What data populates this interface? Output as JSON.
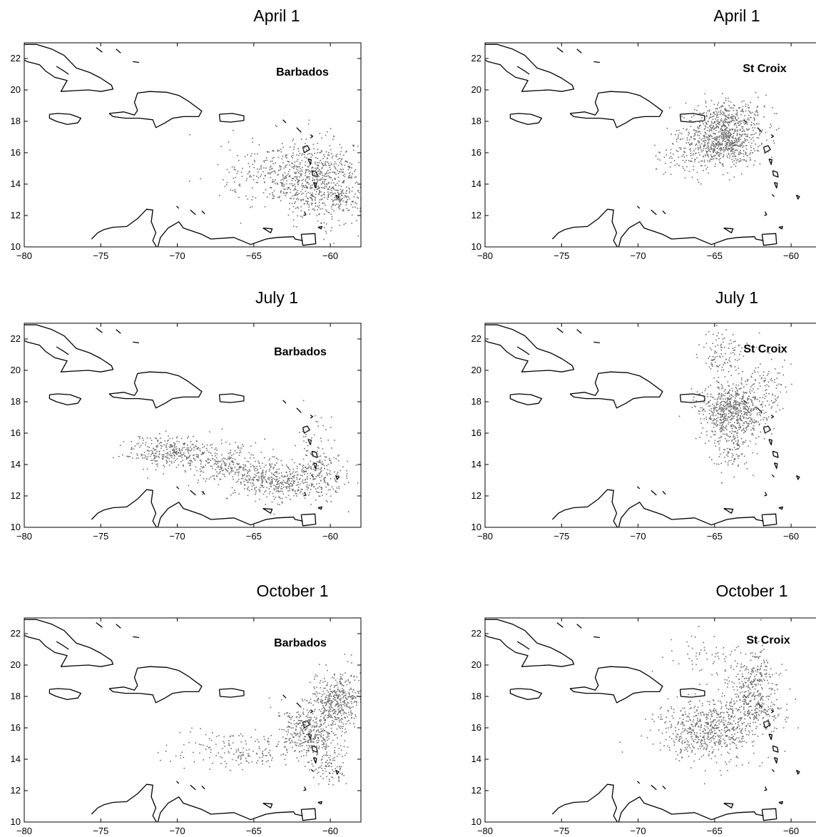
{
  "colors": {
    "points": "#6f6f6f",
    "coastline": "#000000"
  },
  "chart_data": [
    {
      "type": "scatter",
      "title": "April 1",
      "label": "Barbados",
      "xlim": [
        -80,
        -58
      ],
      "ylim": [
        10,
        23
      ],
      "xticks": [
        -80,
        -75,
        -70,
        -65,
        -60
      ],
      "yticks": [
        10,
        12,
        14,
        16,
        18,
        20,
        22
      ],
      "xtick_labels": [
        "−80",
        "−75",
        "−70",
        "−65",
        "−60"
      ],
      "ytick_labels": [
        "10",
        "12",
        "14",
        "16",
        "18",
        "20",
        "22"
      ],
      "clusters": [
        {
          "x": -60.5,
          "y": 14.2,
          "sx": 1.6,
          "sy": 1.3,
          "n": 650
        },
        {
          "x": -63.5,
          "y": 14.5,
          "sx": 1.8,
          "sy": 1.0,
          "n": 260
        },
        {
          "x": -59.3,
          "y": 13.2,
          "sx": 0.35,
          "sy": 0.3,
          "n": 50
        }
      ]
    },
    {
      "type": "scatter",
      "title": "April 1",
      "label": "St Croix",
      "xlim": [
        -80,
        -58
      ],
      "ylim": [
        10,
        23
      ],
      "xticks": [
        -80,
        -75,
        -70,
        -65,
        -60
      ],
      "yticks": [
        10,
        12,
        14,
        16,
        18,
        20,
        22
      ],
      "xtick_labels": [
        "−80",
        "−75",
        "−70",
        "−65",
        "−60"
      ],
      "ytick_labels": [
        "10",
        "12",
        "14",
        "16",
        "18",
        "20",
        "22"
      ],
      "clusters": [
        {
          "x": -64.6,
          "y": 16.8,
          "sx": 1.3,
          "sy": 0.8,
          "n": 800
        },
        {
          "x": -64.0,
          "y": 18.4,
          "sx": 1.2,
          "sy": 0.5,
          "n": 200
        },
        {
          "x": -67.0,
          "y": 15.4,
          "sx": 1.1,
          "sy": 0.6,
          "n": 60
        }
      ]
    },
    {
      "type": "scatter",
      "title": "July 1",
      "label": "Barbados",
      "xlim": [
        -80,
        -58
      ],
      "ylim": [
        10,
        23
      ],
      "xticks": [
        -80,
        -75,
        -70,
        -65,
        -60
      ],
      "yticks": [
        10,
        12,
        14,
        16,
        18,
        20,
        22
      ],
      "xtick_labels": [
        "−80",
        "−75",
        "−70",
        "−65",
        "−60"
      ],
      "ytick_labels": [
        "10",
        "12",
        "14",
        "16",
        "18",
        "20",
        "22"
      ],
      "clusters": [
        {
          "x": -70.5,
          "y": 14.8,
          "sx": 1.4,
          "sy": 0.5,
          "n": 300
        },
        {
          "x": -67.0,
          "y": 14.0,
          "sx": 1.5,
          "sy": 0.7,
          "n": 280
        },
        {
          "x": -63.5,
          "y": 12.9,
          "sx": 1.4,
          "sy": 0.6,
          "n": 350
        },
        {
          "x": -60.8,
          "y": 13.5,
          "sx": 0.9,
          "sy": 0.8,
          "n": 200
        },
        {
          "x": -61.0,
          "y": 16.0,
          "sx": 0.6,
          "sy": 0.9,
          "n": 30
        }
      ]
    },
    {
      "type": "scatter",
      "title": "July 1",
      "label": "St Croix",
      "xlim": [
        -80,
        -58
      ],
      "ylim": [
        10,
        23
      ],
      "xticks": [
        -80,
        -75,
        -70,
        -65,
        -60
      ],
      "yticks": [
        10,
        12,
        14,
        16,
        18,
        20,
        22
      ],
      "xtick_labels": [
        "−80",
        "−75",
        "−70",
        "−65",
        "−60"
      ],
      "ytick_labels": [
        "10",
        "12",
        "14",
        "16",
        "18",
        "20",
        "22"
      ],
      "clusters": [
        {
          "x": -63.8,
          "y": 17.4,
          "sx": 1.1,
          "sy": 0.9,
          "n": 700
        },
        {
          "x": -64.5,
          "y": 21.0,
          "sx": 0.8,
          "sy": 0.7,
          "n": 110
        },
        {
          "x": -64.0,
          "y": 15.0,
          "sx": 0.7,
          "sy": 0.8,
          "n": 120
        },
        {
          "x": -61.6,
          "y": 19.4,
          "sx": 0.7,
          "sy": 0.8,
          "n": 70
        }
      ]
    },
    {
      "type": "scatter",
      "title": "October 1",
      "label": "Barbados",
      "xlim": [
        -80,
        -58
      ],
      "ylim": [
        10,
        23
      ],
      "xticks": [
        -80,
        -75,
        -70,
        -65,
        -60
      ],
      "yticks": [
        10,
        12,
        14,
        16,
        18,
        20,
        22
      ],
      "xtick_labels": [
        "−80",
        "−75",
        "−70",
        "−65",
        "−60"
      ],
      "ytick_labels": [
        "10",
        "12",
        "14",
        "16",
        "18",
        "20",
        "22"
      ],
      "clusters": [
        {
          "x": -59.5,
          "y": 17.8,
          "sx": 0.9,
          "sy": 0.9,
          "n": 450
        },
        {
          "x": -61.5,
          "y": 15.6,
          "sx": 1.0,
          "sy": 0.9,
          "n": 400
        },
        {
          "x": -60.0,
          "y": 13.5,
          "sx": 0.6,
          "sy": 0.6,
          "n": 80
        },
        {
          "x": -66.0,
          "y": 14.6,
          "sx": 1.8,
          "sy": 0.6,
          "n": 150
        }
      ]
    },
    {
      "type": "scatter",
      "title": "October 1",
      "label": "St Croix",
      "xlim": [
        -80,
        -58
      ],
      "ylim": [
        10,
        23
      ],
      "xticks": [
        -80,
        -75,
        -70,
        -65,
        -60
      ],
      "yticks": [
        10,
        12,
        14,
        16,
        18,
        20,
        22
      ],
      "xtick_labels": [
        "−80",
        "−75",
        "−70",
        "−65",
        "−60"
      ],
      "ytick_labels": [
        "10",
        "12",
        "14",
        "16",
        "18",
        "20",
        "22"
      ],
      "clusters": [
        {
          "x": -65.5,
          "y": 16.0,
          "sx": 1.6,
          "sy": 1.0,
          "n": 650
        },
        {
          "x": -62.5,
          "y": 18.8,
          "sx": 0.8,
          "sy": 1.2,
          "n": 300
        },
        {
          "x": -62.0,
          "y": 17.0,
          "sx": 0.9,
          "sy": 0.6,
          "n": 120
        },
        {
          "x": -65.5,
          "y": 20.6,
          "sx": 1.0,
          "sy": 0.7,
          "n": 50
        }
      ]
    }
  ]
}
